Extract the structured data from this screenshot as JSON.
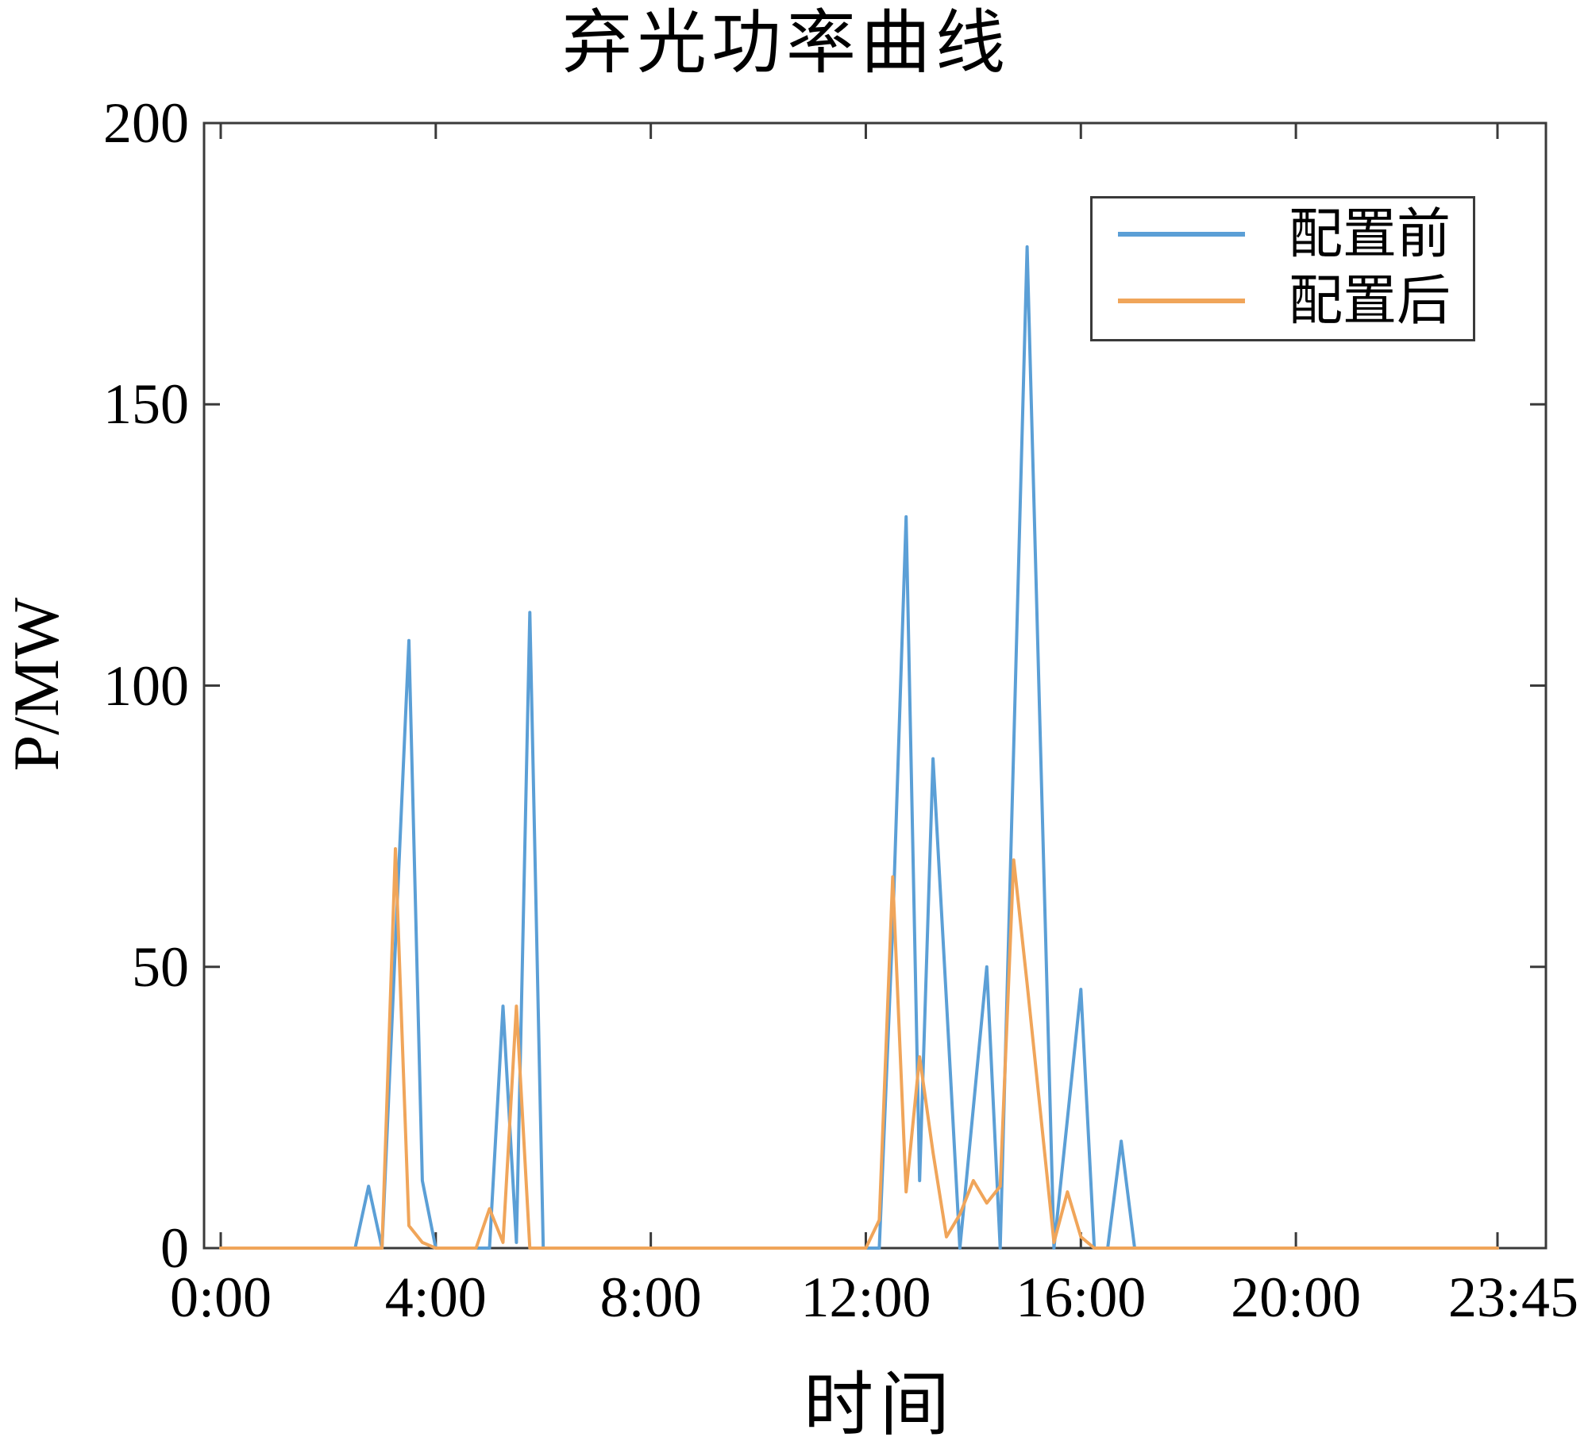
{
  "chart_data": {
    "type": "line",
    "title": "弃光功率曲线",
    "xlabel": "时间",
    "ylabel": "P/MW",
    "ylim": [
      0,
      200
    ],
    "yticks": [
      0,
      50,
      100,
      150,
      200
    ],
    "xticks": [
      {
        "label": "0:00",
        "hour": 0
      },
      {
        "label": "4:00",
        "hour": 4
      },
      {
        "label": "8:00",
        "hour": 8
      },
      {
        "label": "12:00",
        "hour": 12
      },
      {
        "label": "16:00",
        "hour": 16
      },
      {
        "label": "20:00",
        "hour": 20
      },
      {
        "label": "23:45",
        "hour": 23.75
      }
    ],
    "grid": false,
    "legend_position": "upper right",
    "legend": [
      {
        "label": "配置前",
        "color": "#5b9fd6"
      },
      {
        "label": "配置后",
        "color": "#f0a55a"
      }
    ],
    "axis_color": "#3a3a3a",
    "x": [
      "0:00",
      "0:15",
      "0:30",
      "0:45",
      "1:00",
      "1:15",
      "1:30",
      "1:45",
      "2:00",
      "2:15",
      "2:30",
      "2:45",
      "3:00",
      "3:15",
      "3:30",
      "3:45",
      "4:00",
      "4:15",
      "4:30",
      "4:45",
      "5:00",
      "5:15",
      "5:30",
      "5:45",
      "6:00",
      "6:15",
      "6:30",
      "6:45",
      "7:00",
      "7:15",
      "7:30",
      "7:45",
      "8:00",
      "8:15",
      "8:30",
      "8:45",
      "9:00",
      "9:15",
      "9:30",
      "9:45",
      "10:00",
      "10:15",
      "10:30",
      "10:45",
      "11:00",
      "11:15",
      "11:30",
      "11:45",
      "12:00",
      "12:15",
      "12:30",
      "12:45",
      "13:00",
      "13:15",
      "13:30",
      "13:45",
      "14:00",
      "14:15",
      "14:30",
      "14:45",
      "15:00",
      "15:15",
      "15:30",
      "15:45",
      "16:00",
      "16:15",
      "16:30",
      "16:45",
      "17:00",
      "17:15",
      "17:30",
      "17:45",
      "18:00",
      "18:15",
      "18:30",
      "18:45",
      "19:00",
      "19:15",
      "19:30",
      "19:45",
      "20:00",
      "20:15",
      "20:30",
      "20:45",
      "21:00",
      "21:15",
      "21:30",
      "21:45",
      "22:00",
      "22:15",
      "22:30",
      "22:45",
      "23:00",
      "23:15",
      "23:30",
      "23:45"
    ],
    "series": [
      {
        "name": "配置前",
        "color": "#5b9fd6",
        "values": [
          0,
          0,
          0,
          0,
          0,
          0,
          0,
          0,
          0,
          0,
          0,
          11,
          0,
          54,
          108,
          12,
          0,
          0,
          0,
          0,
          0,
          43,
          1,
          113,
          0,
          0,
          0,
          0,
          0,
          0,
          0,
          0,
          0,
          0,
          0,
          0,
          0,
          0,
          0,
          0,
          0,
          0,
          0,
          0,
          0,
          0,
          0,
          0,
          0,
          0,
          57,
          130,
          12,
          87,
          44,
          0,
          25,
          50,
          0,
          89,
          178,
          89,
          0,
          23,
          46,
          0,
          0,
          19,
          0,
          0,
          0,
          0,
          0,
          0,
          0,
          0,
          0,
          0,
          0,
          0,
          0,
          0,
          0,
          0,
          0,
          0,
          0,
          0,
          0,
          0,
          0,
          0,
          0,
          0,
          0,
          0
        ]
      },
      {
        "name": "配置后",
        "color": "#f0a55a",
        "values": [
          0,
          0,
          0,
          0,
          0,
          0,
          0,
          0,
          0,
          0,
          0,
          0,
          0,
          71,
          4,
          1,
          0,
          0,
          0,
          0,
          7,
          1,
          43,
          0,
          0,
          0,
          0,
          0,
          0,
          0,
          0,
          0,
          0,
          0,
          0,
          0,
          0,
          0,
          0,
          0,
          0,
          0,
          0,
          0,
          0,
          0,
          0,
          0,
          0,
          5,
          66,
          10,
          34,
          17,
          2,
          6,
          12,
          8,
          11,
          69,
          47,
          24,
          1,
          10,
          2,
          0,
          0,
          0,
          0,
          0,
          0,
          0,
          0,
          0,
          0,
          0,
          0,
          0,
          0,
          0,
          0,
          0,
          0,
          0,
          0,
          0,
          0,
          0,
          0,
          0,
          0,
          0,
          0,
          0,
          0,
          0
        ]
      }
    ]
  }
}
